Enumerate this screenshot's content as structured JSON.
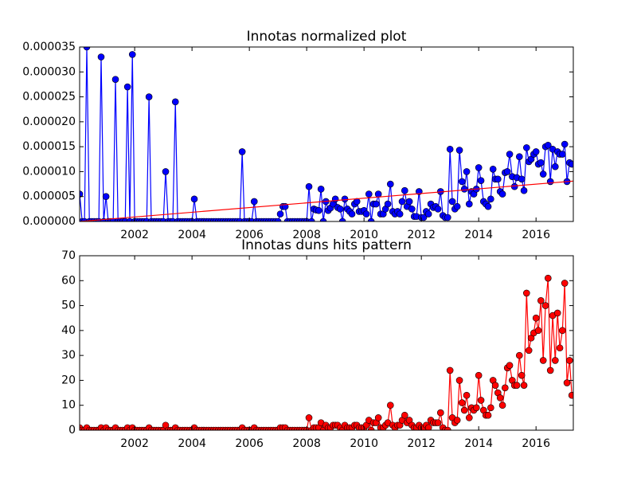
{
  "chart_data": [
    {
      "type": "line",
      "title": "Innotas normalized plot",
      "color": "#0000ff",
      "marker_color": "#0000ff",
      "x": [
        2000.08,
        2000.17,
        2000.25,
        2000.33,
        2000.42,
        2000.5,
        2000.58,
        2000.67,
        2000.75,
        2000.83,
        2000.92,
        2001,
        2001.08,
        2001.17,
        2001.25,
        2001.33,
        2001.42,
        2001.5,
        2001.58,
        2001.67,
        2001.75,
        2001.83,
        2001.92,
        2002,
        2002.08,
        2002.17,
        2002.25,
        2002.33,
        2002.42,
        2002.5,
        2002.58,
        2002.67,
        2002.75,
        2002.83,
        2002.92,
        2003,
        2003.08,
        2003.17,
        2003.25,
        2003.33,
        2003.42,
        2003.5,
        2003.58,
        2003.67,
        2003.75,
        2003.83,
        2003.92,
        2004,
        2004.08,
        2004.17,
        2004.25,
        2004.33,
        2004.42,
        2004.5,
        2004.58,
        2004.67,
        2004.75,
        2004.83,
        2004.92,
        2005,
        2005.08,
        2005.17,
        2005.25,
        2005.33,
        2005.42,
        2005.5,
        2005.58,
        2005.67,
        2005.75,
        2005.83,
        2005.92,
        2006,
        2006.08,
        2006.17,
        2006.25,
        2006.33,
        2006.42,
        2006.5,
        2006.58,
        2006.67,
        2006.75,
        2006.83,
        2006.92,
        2007,
        2007.08,
        2007.17,
        2007.25,
        2007.33,
        2007.42,
        2007.5,
        2007.58,
        2007.67,
        2007.75,
        2007.83,
        2007.92,
        2008,
        2008.08,
        2008.17,
        2008.25,
        2008.33,
        2008.42,
        2008.5,
        2008.58,
        2008.67,
        2008.75,
        2008.83,
        2008.92,
        2009,
        2009.08,
        2009.17,
        2009.25,
        2009.33,
        2009.42,
        2009.5,
        2009.58,
        2009.67,
        2009.75,
        2009.83,
        2009.92,
        2010,
        2010.08,
        2010.17,
        2010.25,
        2010.33,
        2010.42,
        2010.5,
        2010.58,
        2010.67,
        2010.75,
        2010.83,
        2010.92,
        2011,
        2011.08,
        2011.17,
        2011.25,
        2011.33,
        2011.42,
        2011.5,
        2011.58,
        2011.67,
        2011.75,
        2011.83,
        2011.92,
        2012,
        2012.08,
        2012.17,
        2012.25,
        2012.33,
        2012.42,
        2012.5,
        2012.58,
        2012.67,
        2012.75,
        2012.83,
        2012.92,
        2013,
        2013.08,
        2013.17,
        2013.25,
        2013.33,
        2013.42,
        2013.5,
        2013.58,
        2013.67,
        2013.75,
        2013.83,
        2013.92,
        2014,
        2014.08,
        2014.17,
        2014.25,
        2014.33,
        2014.42,
        2014.5,
        2014.58,
        2014.67,
        2014.75,
        2014.83,
        2014.92,
        2015,
        2015.08,
        2015.17,
        2015.25,
        2015.33,
        2015.42,
        2015.5,
        2015.58,
        2015.67,
        2015.75,
        2015.83,
        2015.92,
        2016,
        2016.08,
        2016.17,
        2016.25,
        2016.33,
        2016.42,
        2016.5,
        2016.58,
        2016.67,
        2016.75,
        2016.83,
        2016.92,
        2017,
        2017.08,
        2017.17,
        2017.25
      ],
      "values": [
        5.5e-06,
        0,
        0,
        3.5e-05,
        0,
        0,
        0,
        0,
        0,
        3.3e-05,
        0,
        5e-06,
        0,
        0,
        0,
        2.85e-05,
        0,
        0,
        0,
        0,
        2.7e-05,
        0,
        3.35e-05,
        0,
        0,
        0,
        0,
        0,
        0,
        2.5e-05,
        0,
        0,
        0,
        0,
        0,
        0,
        1e-05,
        0,
        0,
        0,
        2.4e-05,
        0,
        0,
        0,
        0,
        0,
        0,
        0,
        4.5e-06,
        0,
        0,
        0,
        0,
        0,
        0,
        0,
        0,
        0,
        0,
        0,
        0,
        0,
        0,
        0,
        0,
        0,
        0,
        0,
        1.4e-05,
        0,
        0,
        0,
        0,
        4e-06,
        0,
        0,
        0,
        0,
        0,
        0,
        0,
        0,
        0,
        0,
        1.5e-06,
        3e-06,
        3e-06,
        0,
        0,
        0,
        0,
        0,
        0,
        0,
        0,
        0,
        7e-06,
        0,
        2.5e-06,
        2.3e-06,
        2.2e-06,
        6.5e-06,
        0,
        4e-06,
        2.2e-06,
        2.7e-06,
        3.5e-06,
        4.5e-06,
        2.8e-06,
        2.5e-06,
        0,
        4.5e-06,
        2.5e-06,
        2e-06,
        1.5e-06,
        3.5e-06,
        4e-06,
        2e-06,
        2e-06,
        2.2e-06,
        1.5e-06,
        5.5e-06,
        0,
        3.5e-06,
        3.5e-06,
        5.5e-06,
        1.5e-06,
        1.5e-06,
        2.5e-06,
        3.5e-06,
        7.5e-06,
        2e-06,
        1.5e-06,
        2e-06,
        1.5e-06,
        4e-06,
        6.2e-06,
        3e-06,
        4e-06,
        2.5e-06,
        1e-06,
        1e-06,
        6e-06,
        8e-07,
        8e-07,
        2e-06,
        1.5e-06,
        3.5e-06,
        2.8e-06,
        3e-06,
        2.5e-06,
        6e-06,
        1.2e-06,
        8e-07,
        8e-07,
        1.45e-05,
        4e-06,
        2.5e-06,
        3e-06,
        1.43e-05,
        8e-06,
        6.5e-06,
        1e-05,
        3.5e-06,
        6e-06,
        5.5e-06,
        6.5e-06,
        1.08e-05,
        8.2e-06,
        4e-06,
        3.5e-06,
        3e-06,
        4.5e-06,
        1.05e-05,
        8.5e-06,
        8.5e-06,
        6e-06,
        5.5e-06,
        9.8e-06,
        1e-05,
        1.35e-05,
        9e-06,
        7e-06,
        8.8e-06,
        1.3e-05,
        8.5e-06,
        6.2e-06,
        1.48e-05,
        1.2e-05,
        1.25e-05,
        1.35e-05,
        1.4e-05,
        1.15e-05,
        1.18e-05,
        9.5e-06,
        1.5e-05,
        1.53e-05,
        8e-06,
        1.45e-05,
        1.1e-05,
        1.4e-05,
        1.35e-05,
        1.35e-05,
        1.55e-05,
        8e-06,
        1.18e-05,
        1.15e-05
      ],
      "trend": {
        "x": [
          2000.08,
          2017.3
        ],
        "values": [
          0,
          8.1e-06
        ],
        "color": "#ff0000"
      },
      "xlim": [
        2000.08,
        2017.3
      ],
      "xticks": [
        2002,
        2004,
        2006,
        2008,
        2010,
        2012,
        2014,
        2016
      ],
      "ylim": [
        0,
        3.5e-05
      ],
      "yticks": [
        {
          "value": 0,
          "label": "0.000000"
        },
        {
          "value": 5e-06,
          "label": "0.000005"
        },
        {
          "value": 1e-05,
          "label": "0.000010"
        },
        {
          "value": 1.5e-05,
          "label": "0.000015"
        },
        {
          "value": 2e-05,
          "label": "0.000020"
        },
        {
          "value": 2.5e-05,
          "label": "0.000025"
        },
        {
          "value": 3e-05,
          "label": "0.000030"
        },
        {
          "value": 3.5e-05,
          "label": "0.000035"
        }
      ]
    },
    {
      "type": "line",
      "title": "Innotas duns hits pattern",
      "color": "#ff0000",
      "marker_color": "#ff0000",
      "x": [
        2000.08,
        2000.17,
        2000.25,
        2000.33,
        2000.42,
        2000.5,
        2000.58,
        2000.67,
        2000.75,
        2000.83,
        2000.92,
        2001,
        2001.08,
        2001.17,
        2001.25,
        2001.33,
        2001.42,
        2001.5,
        2001.58,
        2001.67,
        2001.75,
        2001.83,
        2001.92,
        2002,
        2002.08,
        2002.17,
        2002.25,
        2002.33,
        2002.42,
        2002.5,
        2002.58,
        2002.67,
        2002.75,
        2002.83,
        2002.92,
        2003,
        2003.08,
        2003.17,
        2003.25,
        2003.33,
        2003.42,
        2003.5,
        2003.58,
        2003.67,
        2003.75,
        2003.83,
        2003.92,
        2004,
        2004.08,
        2004.17,
        2004.25,
        2004.33,
        2004.42,
        2004.5,
        2004.58,
        2004.67,
        2004.75,
        2004.83,
        2004.92,
        2005,
        2005.08,
        2005.17,
        2005.25,
        2005.33,
        2005.42,
        2005.5,
        2005.58,
        2005.67,
        2005.75,
        2005.83,
        2005.92,
        2006,
        2006.08,
        2006.17,
        2006.25,
        2006.33,
        2006.42,
        2006.5,
        2006.58,
        2006.67,
        2006.75,
        2006.83,
        2006.92,
        2007,
        2007.08,
        2007.17,
        2007.25,
        2007.33,
        2007.42,
        2007.5,
        2007.58,
        2007.67,
        2007.75,
        2007.83,
        2007.92,
        2008,
        2008.08,
        2008.17,
        2008.25,
        2008.33,
        2008.42,
        2008.5,
        2008.58,
        2008.67,
        2008.75,
        2008.83,
        2008.92,
        2009,
        2009.08,
        2009.17,
        2009.25,
        2009.33,
        2009.42,
        2009.5,
        2009.58,
        2009.67,
        2009.75,
        2009.83,
        2009.92,
        2010,
        2010.08,
        2010.17,
        2010.25,
        2010.33,
        2010.42,
        2010.5,
        2010.58,
        2010.67,
        2010.75,
        2010.83,
        2010.92,
        2011,
        2011.08,
        2011.17,
        2011.25,
        2011.33,
        2011.42,
        2011.5,
        2011.58,
        2011.67,
        2011.75,
        2011.83,
        2011.92,
        2012,
        2012.08,
        2012.17,
        2012.25,
        2012.33,
        2012.42,
        2012.5,
        2012.58,
        2012.67,
        2012.75,
        2012.83,
        2012.92,
        2013,
        2013.08,
        2013.17,
        2013.25,
        2013.33,
        2013.42,
        2013.5,
        2013.58,
        2013.67,
        2013.75,
        2013.83,
        2013.92,
        2014,
        2014.08,
        2014.17,
        2014.25,
        2014.33,
        2014.42,
        2014.5,
        2014.58,
        2014.67,
        2014.75,
        2014.83,
        2014.92,
        2015,
        2015.08,
        2015.17,
        2015.25,
        2015.33,
        2015.42,
        2015.5,
        2015.58,
        2015.67,
        2015.75,
        2015.83,
        2015.92,
        2016,
        2016.08,
        2016.17,
        2016.25,
        2016.33,
        2016.42,
        2016.5,
        2016.58,
        2016.67,
        2016.75,
        2016.83,
        2016.92,
        2017,
        2017.08,
        2017.17,
        2017.25
      ],
      "values": [
        1,
        0,
        0,
        1,
        0,
        0,
        0,
        0,
        0,
        1,
        0,
        1,
        0,
        0,
        0,
        1,
        0,
        0,
        0,
        0,
        1,
        0,
        1,
        0,
        0,
        0,
        0,
        0,
        0,
        1,
        0,
        0,
        0,
        0,
        0,
        0,
        2,
        0,
        0,
        0,
        1,
        0,
        0,
        0,
        0,
        0,
        0,
        0,
        1,
        0,
        0,
        0,
        0,
        0,
        0,
        0,
        0,
        0,
        0,
        0,
        0,
        0,
        0,
        0,
        0,
        0,
        0,
        0,
        1,
        0,
        0,
        0,
        0,
        1,
        0,
        0,
        0,
        0,
        0,
        0,
        0,
        0,
        0,
        0,
        1,
        1,
        1,
        0,
        0,
        0,
        0,
        0,
        0,
        0,
        0,
        0,
        5,
        0,
        1,
        1,
        1,
        3,
        0,
        2,
        1,
        1,
        2,
        2,
        2,
        1,
        0,
        2,
        1,
        1,
        1,
        2,
        2,
        1,
        1,
        1,
        2,
        4,
        0,
        3,
        3,
        5,
        1,
        1,
        2,
        3,
        10,
        2,
        1,
        2,
        2,
        4,
        6,
        3,
        4,
        2,
        1,
        1,
        2,
        1,
        1,
        2,
        1,
        4,
        3,
        3,
        3,
        7,
        1,
        0,
        0,
        24,
        5,
        3,
        4,
        20,
        11,
        8,
        14,
        5,
        9,
        8,
        9,
        22,
        12,
        8,
        6,
        6,
        9,
        20,
        18,
        15,
        13,
        10,
        17,
        25,
        26,
        20,
        18,
        18,
        30,
        22,
        18,
        55,
        32,
        37,
        39,
        45,
        40,
        52,
        28,
        50,
        61,
        24,
        46,
        28,
        47,
        33,
        40,
        59,
        19,
        28,
        14
      ],
      "xlim": [
        2000.08,
        2017.3
      ],
      "xticks": [
        2002,
        2004,
        2006,
        2008,
        2010,
        2012,
        2014,
        2016
      ],
      "ylim": [
        0,
        70
      ],
      "yticks": [
        0,
        10,
        20,
        30,
        40,
        50,
        60,
        70
      ]
    }
  ]
}
